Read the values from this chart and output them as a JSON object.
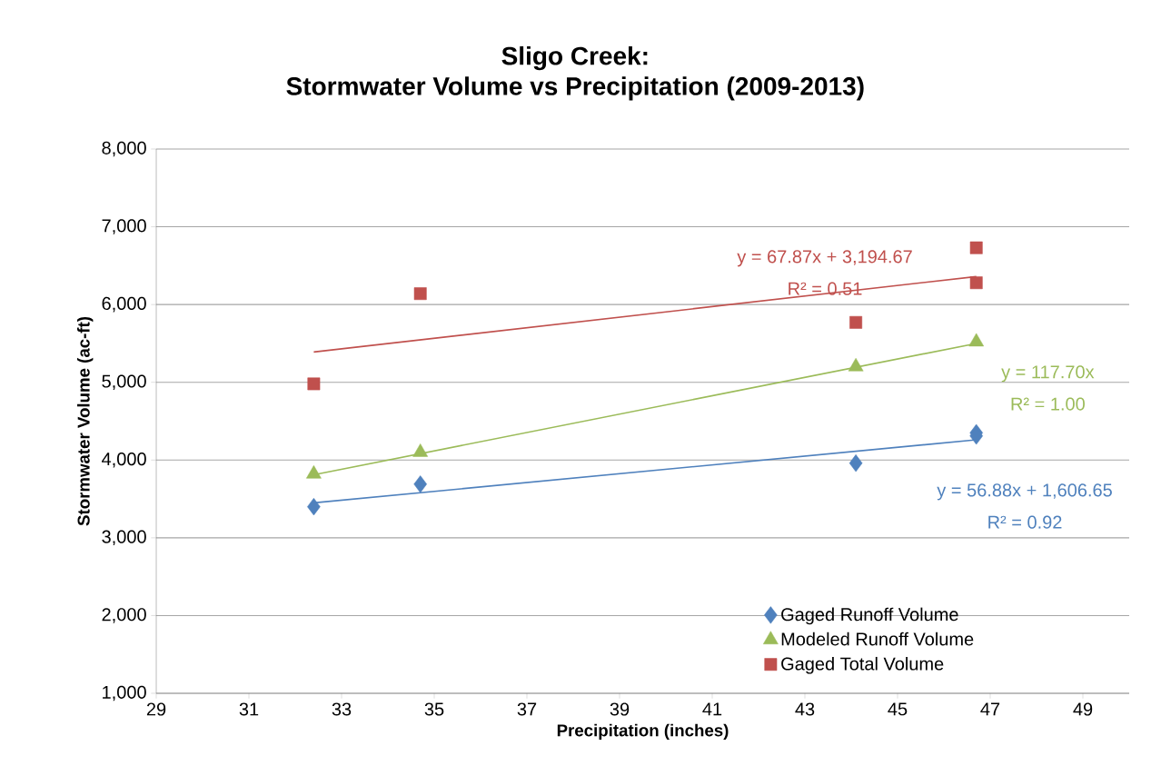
{
  "chart_data": {
    "type": "scatter",
    "title": "Sligo Creek:",
    "subtitle": "Stormwater Volume vs Precipitation (2009-2013)",
    "xlabel": "Precipitation (inches)",
    "ylabel": "Stormwater Volume (ac-ft)",
    "xlim": [
      29,
      50
    ],
    "xticks": [
      29,
      31,
      33,
      35,
      37,
      39,
      41,
      43,
      45,
      47,
      49
    ],
    "ylim": [
      1000,
      8000
    ],
    "yticks": [
      {
        "value": 1000,
        "label": "1,000"
      },
      {
        "value": 2000,
        "label": "2,000"
      },
      {
        "value": 3000,
        "label": "3,000"
      },
      {
        "value": 4000,
        "label": "4,000"
      },
      {
        "value": 5000,
        "label": "5,000"
      },
      {
        "value": 6000,
        "label": "6,000"
      },
      {
        "value": 7000,
        "label": "7,000"
      },
      {
        "value": 8000,
        "label": "8,000"
      }
    ],
    "grid": "y",
    "legend": "bottom right",
    "series": [
      {
        "name": "Gaged Runoff Volume",
        "color": "#4f81bd",
        "marker": "diamond",
        "x": [
          32.4,
          34.7,
          44.1,
          46.7,
          46.7
        ],
        "values": [
          3400,
          3690,
          3960,
          4350,
          4310
        ]
      },
      {
        "name": "Modeled Runoff Volume",
        "color": "#9bbb59",
        "marker": "triangle",
        "x": [
          32.4,
          34.7,
          44.1,
          46.7
        ],
        "values": [
          3820,
          4100,
          5200,
          5520
        ]
      },
      {
        "name": "Gaged Total Volume",
        "color": "#c0504d",
        "marker": "square",
        "x": [
          32.4,
          34.7,
          44.1,
          46.7,
          46.7
        ],
        "values": [
          4980,
          6140,
          5770,
          6730,
          6280
        ]
      },
      {
        "type": "line",
        "color": "#4f81bd",
        "x": [
          32.4,
          46.7
        ],
        "values": [
          3450,
          4260
        ]
      },
      {
        "type": "line",
        "color": "#9bbb59",
        "x": [
          32.4,
          46.7
        ],
        "values": [
          3810,
          5500
        ]
      },
      {
        "type": "line",
        "color": "#c0504d",
        "x": [
          32.4,
          46.7
        ],
        "values": [
          5390,
          6360
        ]
      }
    ],
    "annotations": [
      "y = 56.88x + 1,606.65",
      "R² = 0.92",
      "y = 117.70x",
      "R² = 1.00",
      "y = 67.87x + 3,194.67",
      "R² = 0.51"
    ]
  }
}
